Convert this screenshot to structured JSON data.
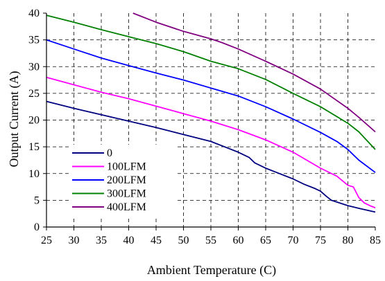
{
  "chart_data": {
    "type": "line",
    "title": "",
    "xlabel": "Ambient Temperature (C)",
    "ylabel": "Output Current (A)",
    "xlim": [
      25,
      85
    ],
    "ylim": [
      0,
      40
    ],
    "xticks": [
      25,
      30,
      35,
      40,
      45,
      50,
      55,
      60,
      65,
      70,
      75,
      80,
      85
    ],
    "yticks": [
      0,
      5,
      10,
      15,
      20,
      25,
      30,
      35,
      40
    ],
    "grid": true,
    "legend_position": "lower-left",
    "series": [
      {
        "name": "0",
        "color": "#000080",
        "points": [
          [
            25,
            23.5
          ],
          [
            30,
            22.2
          ],
          [
            35,
            21
          ],
          [
            40,
            19.8
          ],
          [
            45,
            18.6
          ],
          [
            50,
            17.3
          ],
          [
            55,
            16
          ],
          [
            58,
            14.8
          ],
          [
            60,
            14
          ],
          [
            62,
            13
          ],
          [
            63,
            12
          ],
          [
            65,
            11
          ],
          [
            67,
            10.2
          ],
          [
            70,
            9
          ],
          [
            72,
            8
          ],
          [
            74,
            7.2
          ],
          [
            75,
            6.7
          ],
          [
            76,
            5.8
          ],
          [
            77,
            5
          ],
          [
            80,
            4
          ],
          [
            82,
            3.5
          ],
          [
            85,
            2.8
          ]
        ]
      },
      {
        "name": "100LFM",
        "color": "#ff00ff",
        "points": [
          [
            25,
            28
          ],
          [
            30,
            26.6
          ],
          [
            35,
            25.2
          ],
          [
            40,
            24
          ],
          [
            45,
            22.6
          ],
          [
            50,
            21.2
          ],
          [
            55,
            19.8
          ],
          [
            60,
            18.2
          ],
          [
            65,
            16.3
          ],
          [
            70,
            14
          ],
          [
            72,
            12.8
          ],
          [
            75,
            11
          ],
          [
            78,
            9.5
          ],
          [
            80,
            7.8
          ],
          [
            81,
            7.5
          ],
          [
            82,
            5.5
          ],
          [
            83,
            4.5
          ],
          [
            84,
            4
          ],
          [
            85,
            3.6
          ]
        ]
      },
      {
        "name": "200LFM",
        "color": "#0000ff",
        "points": [
          [
            25,
            35
          ],
          [
            30,
            33.3
          ],
          [
            35,
            31.6
          ],
          [
            40,
            30.2
          ],
          [
            45,
            28.8
          ],
          [
            50,
            27.5
          ],
          [
            55,
            26
          ],
          [
            60,
            24.5
          ],
          [
            65,
            22.5
          ],
          [
            70,
            20.2
          ],
          [
            75,
            17.7
          ],
          [
            78,
            16
          ],
          [
            80,
            14.5
          ],
          [
            82,
            12.5
          ],
          [
            85,
            10.2
          ]
        ]
      },
      {
        "name": "300LFM",
        "color": "#008000",
        "points": [
          [
            25,
            39.6
          ],
          [
            30,
            38.3
          ],
          [
            35,
            36.9
          ],
          [
            40,
            35.6
          ],
          [
            45,
            34.3
          ],
          [
            50,
            32.8
          ],
          [
            55,
            31
          ],
          [
            60,
            29.6
          ],
          [
            65,
            27.6
          ],
          [
            70,
            25
          ],
          [
            75,
            22.5
          ],
          [
            80,
            19.4
          ],
          [
            82,
            17.8
          ],
          [
            85,
            14.5
          ]
        ]
      },
      {
        "name": "400LFM",
        "color": "#800080",
        "points": [
          [
            40.8,
            40
          ],
          [
            45,
            38.3
          ],
          [
            50,
            36.6
          ],
          [
            55,
            35.2
          ],
          [
            57,
            34.5
          ],
          [
            60,
            33.3
          ],
          [
            65,
            31
          ],
          [
            70,
            28.6
          ],
          [
            75,
            25.8
          ],
          [
            80,
            22.2
          ],
          [
            82,
            20.5
          ],
          [
            85,
            17.8
          ]
        ]
      }
    ]
  }
}
